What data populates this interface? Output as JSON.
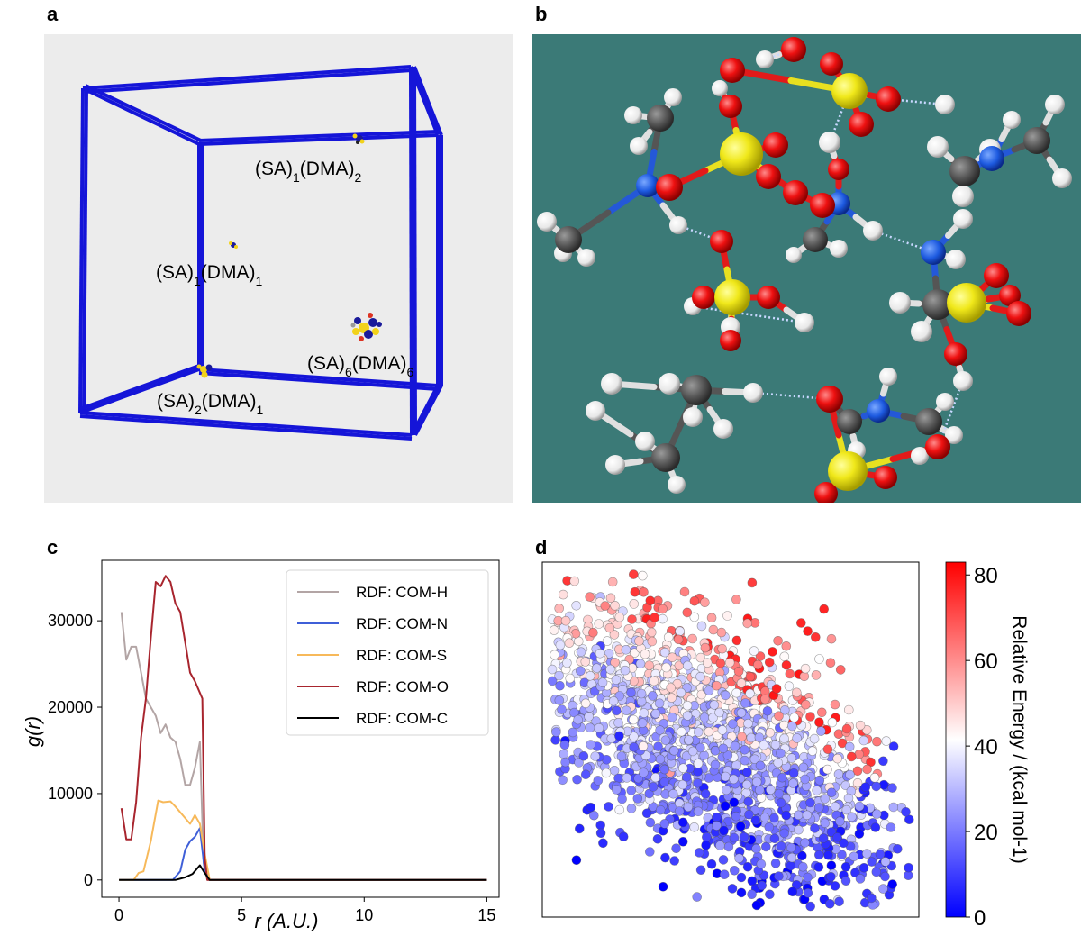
{
  "labels": {
    "a": "a",
    "b": "b",
    "c": "c",
    "d": "d"
  },
  "panel_a": {
    "clusters": [
      {
        "name": "(SA)",
        "s1": "1",
        "mid": "(DMA)",
        "s2": "2"
      },
      {
        "name": "(SA)",
        "s1": "1",
        "mid": "(DMA)",
        "s2": "1"
      },
      {
        "name": "(SA)",
        "s1": "6",
        "mid": "(DMA)",
        "s2": "6"
      },
      {
        "name": "(SA)",
        "s1": "2",
        "mid": "(DMA)",
        "s2": "1"
      }
    ],
    "box_color": "#1515d8"
  },
  "panel_b": {
    "background": "#3b7a77"
  },
  "chart_data": [
    {
      "type": "line",
      "xlabel": "r (A.U.)",
      "ylabel": "g(r)",
      "xlim": [
        -0.7,
        15.5
      ],
      "ylim": [
        -2000,
        37000
      ],
      "xticks": [
        0,
        5,
        10,
        15
      ],
      "yticks": [
        0,
        10000,
        20000,
        30000
      ],
      "legend_position": "top-right",
      "grid": false,
      "series": [
        {
          "name": "RDF: COM-H",
          "color": "#b3a5a5",
          "x": [
            0.1,
            0.3,
            0.5,
            0.7,
            0.9,
            1.1,
            1.3,
            1.5,
            1.7,
            1.9,
            2.1,
            2.3,
            2.5,
            2.7,
            2.9,
            3.1,
            3.3,
            3.45,
            3.6,
            3.8,
            15
          ],
          "y": [
            31000,
            25500,
            27000,
            27000,
            24000,
            21000,
            20000,
            19000,
            17000,
            18000,
            16500,
            16000,
            14000,
            11000,
            11000,
            13000,
            16000,
            2000,
            0,
            0,
            0
          ]
        },
        {
          "name": "RDF: COM-N",
          "color": "#3f5fd8",
          "x": [
            0,
            2.2,
            2.5,
            2.7,
            2.9,
            3.1,
            3.3,
            3.5,
            3.7,
            15
          ],
          "y": [
            0,
            0,
            1000,
            3500,
            4500,
            5000,
            6000,
            1000,
            0,
            0
          ]
        },
        {
          "name": "RDF: COM-S",
          "color": "#f7b95a",
          "x": [
            0,
            0.6,
            0.8,
            1.0,
            1.3,
            1.6,
            1.8,
            2.1,
            2.3,
            2.6,
            2.9,
            3.1,
            3.3,
            3.5,
            3.7,
            15
          ],
          "y": [
            0,
            0,
            800,
            1000,
            4500,
            9200,
            9000,
            9100,
            8500,
            7500,
            6500,
            7500,
            6500,
            3000,
            0,
            0
          ]
        },
        {
          "name": "RDF: COM-O",
          "color": "#a8252e",
          "x": [
            0.1,
            0.3,
            0.5,
            0.7,
            0.9,
            1.1,
            1.3,
            1.5,
            1.7,
            1.9,
            2.1,
            2.3,
            2.5,
            2.7,
            2.9,
            3.1,
            3.4,
            3.5,
            3.6,
            3.8,
            15
          ],
          "y": [
            8300,
            4700,
            4700,
            9000,
            16500,
            21000,
            28000,
            34500,
            34000,
            35200,
            34500,
            32000,
            31000,
            27500,
            24000,
            23000,
            21000,
            2500,
            0,
            0,
            0
          ]
        },
        {
          "name": "RDF: COM-C",
          "color": "#000000",
          "x": [
            0,
            2.3,
            2.7,
            3.0,
            3.3,
            3.5,
            3.7,
            15
          ],
          "y": [
            0,
            0,
            300,
            700,
            1700,
            800,
            0,
            0
          ]
        }
      ]
    },
    {
      "type": "scatter",
      "colorbar": {
        "label": "Relative Energy / (kcal mol-1)",
        "ticks": [
          0,
          20,
          40,
          60,
          80
        ],
        "range": [
          0,
          83
        ],
        "colormap": "bwr"
      },
      "description_points": "approx. 2000 points distributed in an elongated cloud oriented from upper-left to lower-right; colors mostly light-to-medium blue (20-35), with red/pink points (50-80) concentrated near the upper edge and darker blue points (0-15) near the lower right",
      "x_axis_ticks": "none shown",
      "y_axis_ticks": "none shown"
    }
  ]
}
